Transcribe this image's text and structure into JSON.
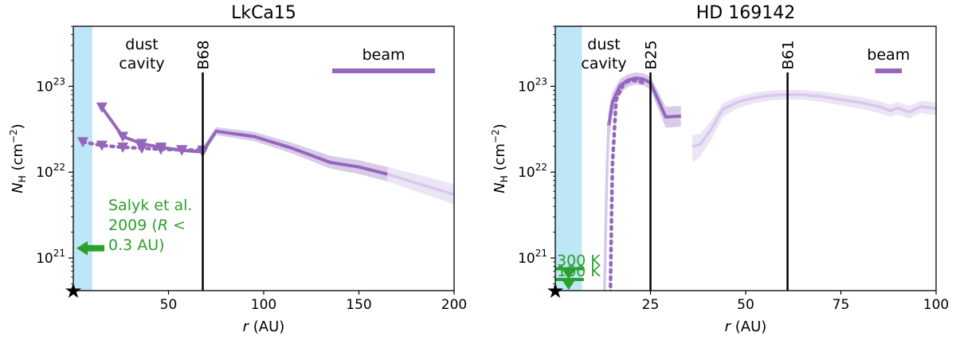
{
  "chart_data": [
    {
      "type": "line",
      "title": "LkCa15",
      "xlabel": "r (AU)",
      "ylabel": "N_H (cm^-2)",
      "ylabel_base": "N",
      "ylabel_sub": "H",
      "ylabel_unit": " (cm",
      "ylabel_exp": "−2",
      "ylabel_close": ")",
      "xlim": [
        0,
        200
      ],
      "ylim_log10": [
        20.62,
        23.7
      ],
      "yscale": "log",
      "xticks": [
        50,
        100,
        150,
        200
      ],
      "xtick_labels": [
        "50",
        "100",
        "150",
        "200"
      ],
      "yticks_log10": [
        21,
        22,
        23
      ],
      "ytick_base": "10",
      "ytick_exps": [
        "21",
        "22",
        "23"
      ],
      "colors": {
        "line": "#9467bd",
        "band": "#d5c5e8",
        "faint": "#e6dcf2",
        "cavity": "#bde6f7",
        "ref": "#2ca02c"
      },
      "cavity_xrange": [
        0,
        10
      ],
      "ring": {
        "label": "B68",
        "x": 68
      },
      "annotations": {
        "cavity_line1": "dust",
        "cavity_line2": "cavity",
        "beam": "beam"
      },
      "beam_fwhm_au": [
        136,
        190,
        23.18
      ],
      "reference": {
        "line1": "Salyk et al.",
        "line2_a": "2009 (",
        "line2_r": "R",
        "line2_b": " <",
        "line3": "0.3 AU)",
        "y": 1.3e+21
      },
      "series": [
        {
          "style": "solid",
          "x": [
            68,
            75,
            95,
            115,
            135,
            150,
            165
          ],
          "y": [
            1.75e+22,
            3e+22,
            2.6e+22,
            1.9e+22,
            1.3e+22,
            1.15e+22,
            9.5e+21
          ],
          "band_x": [
            68,
            75,
            95,
            115,
            135,
            150,
            165
          ],
          "band_lo": [
            1.55e+22,
            2.7e+22,
            2.3e+22,
            1.65e+22,
            1.1e+22,
            9.5e+21,
            7.8e+21
          ],
          "band_hi": [
            1.95e+22,
            3.35e+22,
            2.95e+22,
            2.2e+22,
            1.55e+22,
            1.38e+22,
            1.15e+22
          ]
        },
        {
          "style": "faint",
          "x": [
            165,
            180,
            200
          ],
          "y": [
            9.5e+21,
            7.5e+21,
            5.5e+21
          ],
          "band_lo": [
            7.8e+21,
            6e+21,
            4.2e+21
          ],
          "band_hi": [
            1.15e+22,
            9.5e+21,
            7.2e+21
          ]
        },
        {
          "style": "solid-upper-limits",
          "x": [
            15,
            26,
            36,
            46,
            57,
            68
          ],
          "y": [
            5.7e+22,
            2.6e+22,
            2.15e+22,
            1.95e+22,
            1.8e+22,
            1.72e+22
          ]
        },
        {
          "style": "dotted-upper-limits",
          "x": [
            5,
            15,
            26,
            36,
            46,
            57,
            68
          ],
          "y": [
            2.25e+22,
            2.05e+22,
            1.95e+22,
            1.9e+22,
            1.85e+22,
            1.82e+22,
            1.8e+22
          ]
        }
      ]
    },
    {
      "type": "line",
      "title": "HD 169142",
      "xlabel": "r (AU)",
      "ylabel": "N_H (cm^-2)",
      "ylabel_base": "N",
      "ylabel_sub": "H",
      "ylabel_unit": " (cm",
      "ylabel_exp": "−2",
      "ylabel_close": ")",
      "xlim": [
        0,
        100
      ],
      "ylim_log10": [
        20.62,
        23.7
      ],
      "yscale": "log",
      "xticks": [
        25,
        50,
        75,
        100
      ],
      "xtick_labels": [
        "25",
        "50",
        "75",
        "100"
      ],
      "yticks_log10": [
        21,
        22,
        23
      ],
      "ytick_base": "10",
      "ytick_exps": [
        "21",
        "22",
        "23"
      ],
      "colors": {
        "line": "#9467bd",
        "band": "#d5c5e8",
        "faint": "#e6dcf2",
        "cavity": "#bde6f7",
        "ref": "#2ca02c"
      },
      "cavity_xrange": [
        0,
        7
      ],
      "rings": [
        {
          "label": "B25",
          "x": 25
        },
        {
          "label": "B61",
          "x": 61
        }
      ],
      "annotations": {
        "cavity_line1": "dust",
        "cavity_line2": "cavity",
        "beam": "beam"
      },
      "beam_fwhm_au": [
        84,
        91,
        23.18
      ],
      "reference_levels": [
        {
          "label": "300 K",
          "y": 7.5e+20
        },
        {
          "label": "100 K",
          "y": 2.6e+20
        }
      ],
      "series": [
        {
          "style": "solid",
          "x": [
            14,
            15,
            17,
            19,
            21,
            23,
            25,
            27,
            29,
            33
          ],
          "y": [
            3.5e+22,
            6.5e+22,
            1.02e+23,
            1.18e+23,
            1.25e+23,
            1.22e+23,
            1.1e+23,
            7e+22,
            4.4e+22,
            4.5e+22
          ],
          "band_lo": [
            2e+22,
            4.5e+22,
            8.2e+22,
            9.8e+22,
            1.05e+23,
            1.03e+23,
            9.2e+22,
            5.5e+22,
            3.3e+22,
            3.4e+22
          ],
          "band_hi": [
            5e+22,
            8.5e+22,
            1.22e+23,
            1.38e+23,
            1.45e+23,
            1.42e+23,
            1.3e+23,
            8.8e+22,
            5.8e+22,
            5.9e+22
          ]
        },
        {
          "style": "faint",
          "x": [
            12.5,
            13,
            13.5,
            14
          ],
          "y": [
            1e+20,
            6e+20,
            8e+21,
            3.5e+22
          ],
          "band_lo": [
            1e+20,
            3e+20,
            5e+21,
            2e+22
          ],
          "band_hi": [
            1e+20,
            9e+20,
            1.2e+22,
            5e+22
          ]
        },
        {
          "style": "faint",
          "x": [
            36,
            38,
            41,
            44,
            48,
            52,
            56,
            60,
            65,
            70,
            75,
            80,
            85,
            88,
            90,
            93,
            96,
            100
          ],
          "y": [
            2e+22,
            2.1e+22,
            3.2e+22,
            5.4e+22,
            6.6e+22,
            7.3e+22,
            7.8e+22,
            8e+22,
            8e+22,
            7.6e+22,
            7e+22,
            6.5e+22,
            5.8e+22,
            5.2e+22,
            5.6e+22,
            5e+22,
            5.8e+22,
            5.5e+22
          ],
          "band_lo": [
            1.3e+22,
            1.5e+22,
            2.4e+22,
            4.4e+22,
            5.6e+22,
            6.3e+22,
            6.8e+22,
            7e+22,
            7e+22,
            6.6e+22,
            6e+22,
            5.5e+22,
            4.9e+22,
            4.4e+22,
            4.7e+22,
            4.2e+22,
            4.9e+22,
            4.6e+22
          ],
          "band_hi": [
            2.7e+22,
            2.8e+22,
            4e+22,
            6.4e+22,
            7.6e+22,
            8.4e+22,
            8.9e+22,
            9.1e+22,
            9.1e+22,
            8.7e+22,
            8.1e+22,
            7.5e+22,
            6.8e+22,
            6.1e+22,
            6.6e+22,
            5.9e+22,
            6.8e+22,
            6.5e+22
          ]
        },
        {
          "style": "dotted",
          "x": [
            14.3,
            14.6,
            15,
            16,
            18,
            20,
            22,
            24
          ],
          "y": [
            1e+20,
            1e+21,
            1.2e+22,
            7e+22,
            1.08e+23,
            1.18e+23,
            1.15e+23,
            1.05e+23
          ]
        }
      ]
    }
  ]
}
